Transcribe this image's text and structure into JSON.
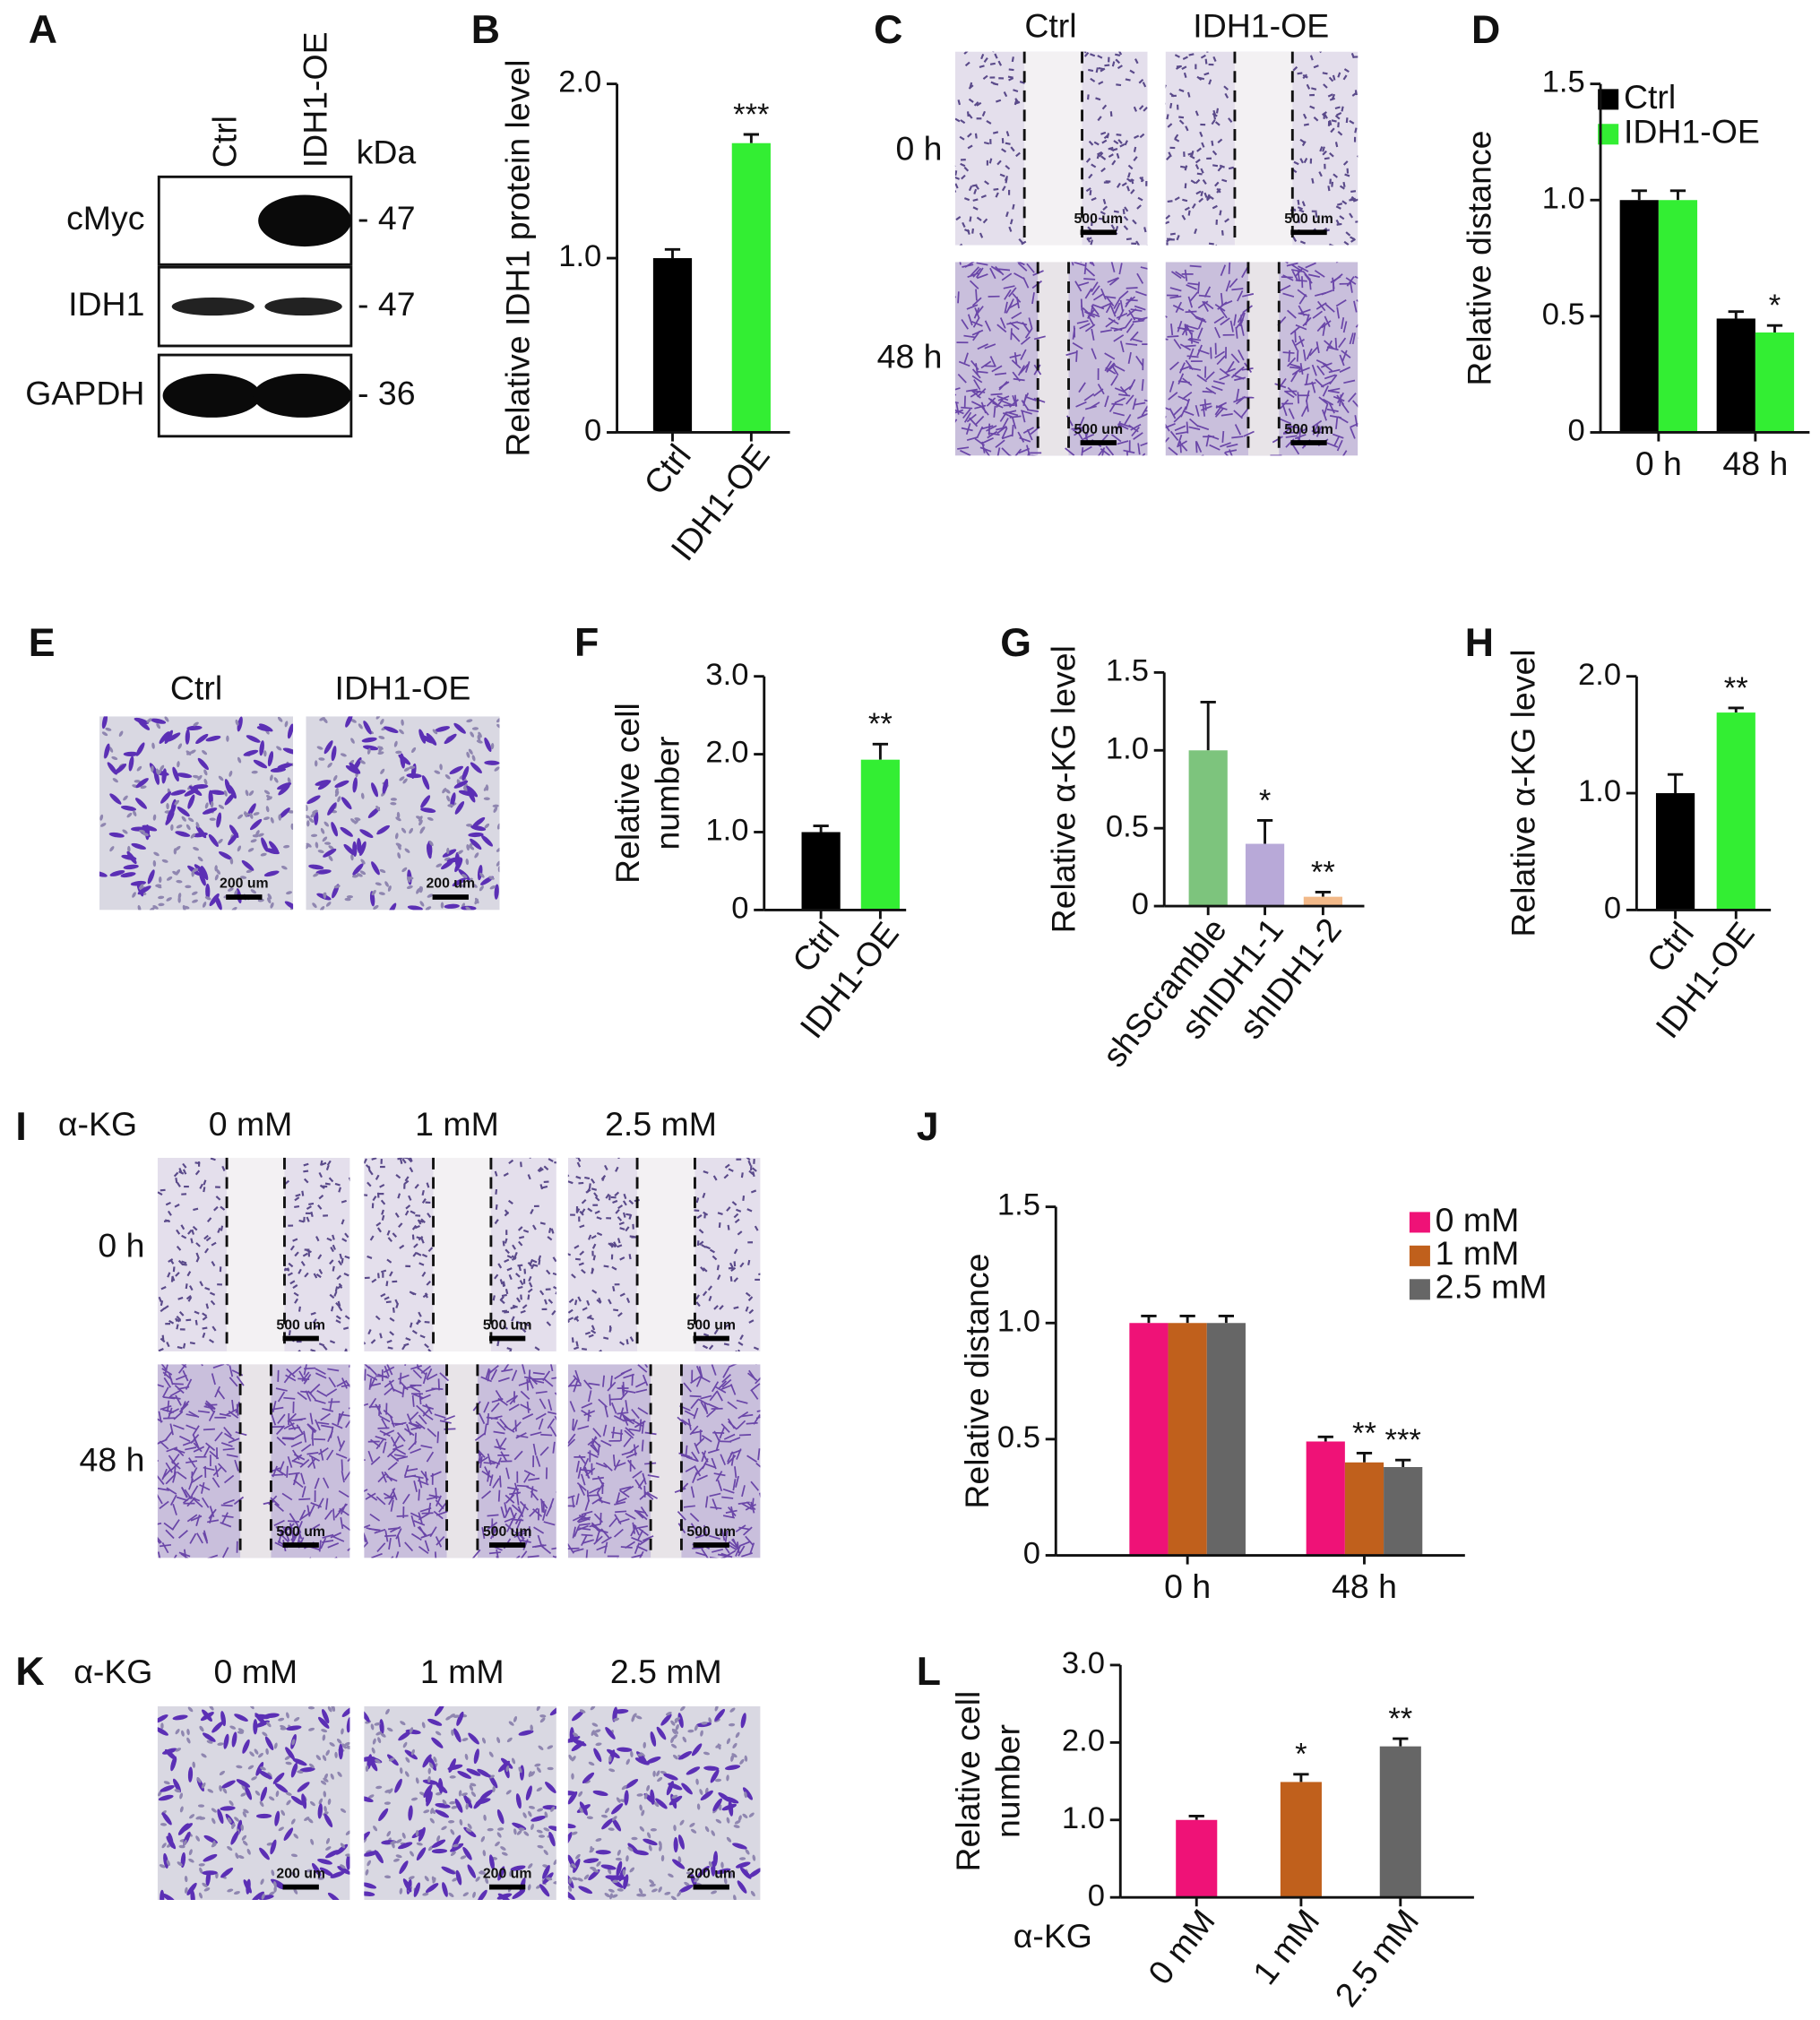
{
  "panel_labels": [
    "A",
    "B",
    "C",
    "D",
    "E",
    "F",
    "G",
    "H",
    "I",
    "J",
    "K",
    "L"
  ],
  "blot": {
    "columns": [
      "Ctrl",
      "IDH1-OE"
    ],
    "unit": "kDa",
    "rows": [
      {
        "name": "cMyc",
        "kda": "- 47"
      },
      {
        "name": "IDH1",
        "kda": "- 47"
      },
      {
        "name": "GAPDH",
        "kda": "- 36"
      }
    ]
  },
  "wound_ctrl": {
    "columns": [
      "Ctrl",
      "IDH1-OE"
    ],
    "rows": [
      "0 h",
      "48 h"
    ],
    "scale": "500 um"
  },
  "transwell_ctrl": {
    "columns": [
      "Ctrl",
      "IDH1-OE"
    ],
    "scale": "200 um"
  },
  "wound_akg": {
    "treatment": "α-KG",
    "columns": [
      "0 mM",
      "1 mM",
      "2.5 mM"
    ],
    "rows": [
      "0 h",
      "48 h"
    ],
    "scale": "500 um"
  },
  "transwell_akg": {
    "treatment": "α-KG",
    "columns": [
      "0 mM",
      "1 mM",
      "2.5 mM"
    ],
    "scale": "200 um"
  },
  "chart_data": [
    {
      "type": "bar",
      "ylabel": "Relative IDH1 protein  level",
      "categories": [
        "Ctrl",
        "IDH1-OE"
      ],
      "values": [
        1.0,
        1.66
      ],
      "errors": [
        0.05,
        0.05
      ],
      "colors": [
        "#000000",
        "#33ee33"
      ],
      "significance": [
        null,
        "***"
      ],
      "ylim": [
        0,
        2
      ],
      "yticks": [
        0,
        {
          "value": 1,
          "label": "1.0"
        },
        {
          "value": 2,
          "label": "2.0"
        }
      ]
    },
    {
      "type": "bar",
      "ylabel": "Relative distance",
      "categories": [
        "0 h",
        "48 h"
      ],
      "legend": "upper right",
      "series": [
        {
          "name": "Ctrl",
          "color": "#000000",
          "values": [
            1.0,
            0.49
          ],
          "errors": [
            0.04,
            0.03
          ],
          "significance": [
            null,
            null
          ]
        },
        {
          "name": "IDH1-OE",
          "color": "#33ee33",
          "values": [
            1.0,
            0.43
          ],
          "errors": [
            0.04,
            0.03
          ],
          "significance": [
            null,
            "*"
          ]
        }
      ],
      "ylim": [
        0,
        1.5
      ],
      "yticks": [
        0,
        0.5,
        {
          "value": 1,
          "label": "1.0"
        },
        1.5
      ]
    },
    {
      "type": "bar",
      "ylabel": [
        "Relative cell",
        "number"
      ],
      "categories": [
        "Ctrl",
        "IDH1-OE"
      ],
      "values": [
        1.0,
        1.93
      ],
      "errors": [
        0.08,
        0.2
      ],
      "colors": [
        "#000000",
        "#33ee33"
      ],
      "significance": [
        null,
        "**"
      ],
      "ylim": [
        0,
        3
      ],
      "yticks": [
        0,
        {
          "value": 1,
          "label": "1.0"
        },
        {
          "value": 2,
          "label": "2.0"
        },
        {
          "value": 3,
          "label": "3.0"
        }
      ]
    },
    {
      "type": "bar",
      "ylabel": "Relative α-KG level",
      "categories": [
        "shScramble",
        "shIDH1-1",
        "shIDH1-2"
      ],
      "values": [
        1.0,
        0.4,
        0.06
      ],
      "errors": [
        0.31,
        0.15,
        0.03
      ],
      "colors": [
        "#7dc47d",
        "#b8a9d8",
        "#f2b989"
      ],
      "significance": [
        null,
        "*",
        "**"
      ],
      "ylim": [
        0,
        1.5
      ],
      "yticks": [
        0,
        0.5,
        {
          "value": 1,
          "label": "1.0"
        },
        1.5
      ]
    },
    {
      "type": "bar",
      "ylabel": "Relative α-KG level",
      "categories": [
        "Ctrl",
        "IDH1-OE"
      ],
      "values": [
        1.0,
        1.69
      ],
      "errors": [
        0.16,
        0.04
      ],
      "colors": [
        "#000000",
        "#33ee33"
      ],
      "significance": [
        null,
        "**"
      ],
      "ylim": [
        0,
        2
      ],
      "yticks": [
        0,
        {
          "value": 1,
          "label": "1.0"
        },
        {
          "value": 2,
          "label": "2.0"
        }
      ]
    },
    {
      "type": "bar",
      "ylabel": "Relative distance",
      "categories": [
        "0 h",
        "48 h"
      ],
      "legend": "upper right",
      "series": [
        {
          "name": "0 mM",
          "color": "#ef1277",
          "values": [
            1.0,
            0.49
          ],
          "errors": [
            0.03,
            0.02
          ],
          "significance": [
            null,
            null
          ]
        },
        {
          "name": "1 mM",
          "color": "#c0601c",
          "values": [
            1.0,
            0.4
          ],
          "errors": [
            0.03,
            0.04
          ],
          "significance": [
            null,
            "**"
          ]
        },
        {
          "name": "2.5 mM",
          "color": "#666666",
          "values": [
            1.0,
            0.38
          ],
          "errors": [
            0.03,
            0.03
          ],
          "significance": [
            null,
            "***"
          ]
        }
      ],
      "ylim": [
        0,
        1.5
      ],
      "yticks": [
        0,
        0.5,
        {
          "value": 1,
          "label": "1.0"
        },
        1.5
      ]
    },
    {
      "type": "bar",
      "ylabel": [
        "Relative cell",
        "number"
      ],
      "xlabel": "α-KG",
      "categories": [
        "0 mM",
        "1 mM",
        "2.5 mM"
      ],
      "values": [
        1.0,
        1.49,
        1.95
      ],
      "errors": [
        0.05,
        0.1,
        0.1
      ],
      "colors": [
        "#ef1277",
        "#c0601c",
        "#666666"
      ],
      "significance": [
        null,
        "*",
        "**"
      ],
      "ylim": [
        0,
        3
      ],
      "yticks": [
        0,
        {
          "value": 1,
          "label": "1.0"
        },
        {
          "value": 2,
          "label": "2.0"
        },
        {
          "value": 3,
          "label": "3.0"
        }
      ]
    }
  ]
}
